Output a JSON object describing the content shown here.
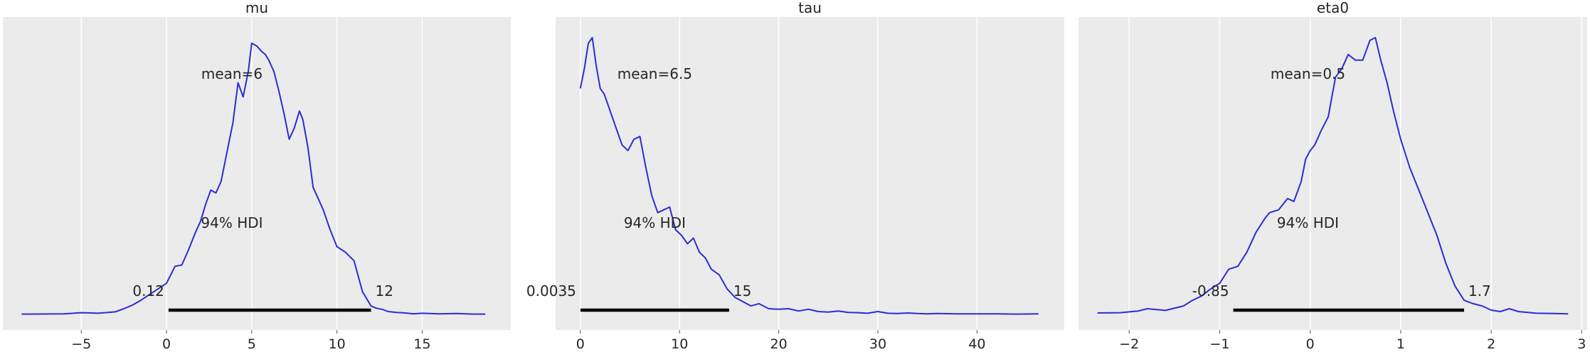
{
  "chart_data": [
    {
      "type": "area",
      "title": "mu",
      "xlim": [
        -9.6,
        20.2
      ],
      "xticks": [
        -5,
        0,
        5,
        10,
        15
      ],
      "xtick_labels": [
        "−5",
        "0",
        "5",
        "10",
        "15"
      ],
      "grid": true,
      "mean_label": "mean=6",
      "hdi_label": "94% HDI",
      "hdi": [
        0.12,
        12
      ],
      "hdi_labels": [
        "0.12",
        "12"
      ],
      "density": {
        "x": [
          -8.5,
          -6.0,
          -5.0,
          -4.0,
          -3.0,
          -2.5,
          -2.0,
          -1.5,
          -1.0,
          -0.5,
          0.0,
          0.5,
          0.9,
          1.3,
          1.7,
          2.0,
          2.3,
          2.6,
          2.9,
          3.2,
          3.5,
          3.9,
          4.2,
          4.5,
          4.8,
          5.0,
          5.3,
          5.6,
          5.8,
          6.0,
          6.3,
          6.6,
          6.9,
          7.2,
          7.5,
          7.8,
          8.0,
          8.3,
          8.6,
          8.9,
          9.2,
          9.6,
          10.0,
          10.5,
          11.0,
          11.5,
          12.0,
          12.3,
          12.7,
          13.0,
          13.5,
          14.0,
          14.5,
          15.0,
          16.0,
          17.0,
          18.0,
          18.7
        ],
        "y": [
          0.001,
          0.002,
          0.006,
          0.004,
          0.009,
          0.02,
          0.033,
          0.05,
          0.07,
          0.09,
          0.11,
          0.17,
          0.175,
          0.23,
          0.29,
          0.33,
          0.39,
          0.44,
          0.43,
          0.47,
          0.56,
          0.68,
          0.82,
          0.77,
          0.86,
          0.96,
          0.95,
          0.93,
          0.92,
          0.9,
          0.86,
          0.79,
          0.71,
          0.62,
          0.66,
          0.72,
          0.69,
          0.59,
          0.45,
          0.41,
          0.37,
          0.3,
          0.24,
          0.22,
          0.19,
          0.08,
          0.03,
          0.022,
          0.017,
          0.01,
          0.007,
          0.005,
          0.002,
          0.004,
          0.002,
          0.003,
          0.001,
          0.001
        ]
      }
    },
    {
      "type": "area",
      "title": "tau",
      "xlim": [
        -2.5,
        48.8
      ],
      "xticks": [
        0,
        10,
        20,
        30,
        40
      ],
      "xtick_labels": [
        "0",
        "10",
        "20",
        "30",
        "40"
      ],
      "grid": true,
      "mean_label": "mean=6.5",
      "hdi_label": "94% HDI",
      "hdi": [
        0.0035,
        15
      ],
      "hdi_labels": [
        "0.0035",
        "15"
      ],
      "density": {
        "x": [
          0.0,
          0.4,
          0.8,
          1.2,
          1.6,
          2.0,
          2.4,
          3.0,
          3.6,
          4.2,
          4.8,
          5.4,
          6.0,
          6.6,
          7.2,
          7.8,
          8.4,
          9.0,
          9.6,
          10.2,
          10.8,
          11.4,
          12.0,
          12.6,
          13.2,
          14.0,
          14.8,
          15.6,
          16.4,
          17.2,
          18.0,
          19.0,
          20.0,
          21.0,
          22.0,
          23.0,
          24.0,
          25.0,
          26.0,
          27.0,
          28.0,
          29.0,
          30.0,
          31.0,
          32.0,
          33.0,
          34.0,
          35.0,
          36.0,
          38.0,
          40.0,
          42.0,
          44.0,
          46.2
        ],
        "y": [
          0.8,
          0.87,
          0.96,
          0.98,
          0.88,
          0.8,
          0.78,
          0.72,
          0.66,
          0.6,
          0.58,
          0.62,
          0.63,
          0.52,
          0.42,
          0.36,
          0.37,
          0.38,
          0.3,
          0.28,
          0.25,
          0.27,
          0.22,
          0.2,
          0.16,
          0.14,
          0.09,
          0.06,
          0.045,
          0.03,
          0.038,
          0.02,
          0.018,
          0.02,
          0.012,
          0.018,
          0.01,
          0.008,
          0.012,
          0.007,
          0.006,
          0.004,
          0.01,
          0.004,
          0.003,
          0.005,
          0.003,
          0.002,
          0.003,
          0.002,
          0.002,
          0.002,
          0.001,
          0.002
        ]
      }
    },
    {
      "type": "area",
      "title": "eta0",
      "xlim": [
        -2.56,
        3.06
      ],
      "xticks": [
        -2,
        -1,
        0,
        1,
        2,
        3
      ],
      "xtick_labels": [
        "−2",
        "−1",
        "0",
        "1",
        "2",
        "3"
      ],
      "grid": true,
      "mean_label": "mean=0.5",
      "hdi_label": "94% HDI",
      "hdi": [
        -0.85,
        1.7
      ],
      "hdi_labels": [
        "-0.85",
        "1.7"
      ],
      "density": {
        "x": [
          -2.35,
          -2.1,
          -1.9,
          -1.8,
          -1.6,
          -1.4,
          -1.3,
          -1.2,
          -1.1,
          -1.0,
          -0.9,
          -0.8,
          -0.7,
          -0.6,
          -0.5,
          -0.45,
          -0.35,
          -0.25,
          -0.18,
          -0.1,
          -0.05,
          0.0,
          0.05,
          0.12,
          0.2,
          0.28,
          0.35,
          0.42,
          0.5,
          0.58,
          0.66,
          0.72,
          0.78,
          0.85,
          0.92,
          1.0,
          1.1,
          1.2,
          1.3,
          1.4,
          1.5,
          1.6,
          1.7,
          1.8,
          1.9,
          2.0,
          2.1,
          2.2,
          2.3,
          2.5,
          2.7,
          2.85
        ],
        "y": [
          0.005,
          0.006,
          0.012,
          0.02,
          0.014,
          0.03,
          0.05,
          0.065,
          0.09,
          0.11,
          0.16,
          0.17,
          0.22,
          0.29,
          0.34,
          0.36,
          0.37,
          0.41,
          0.4,
          0.47,
          0.55,
          0.58,
          0.6,
          0.65,
          0.7,
          0.84,
          0.87,
          0.92,
          0.9,
          0.9,
          0.97,
          0.98,
          0.9,
          0.82,
          0.72,
          0.62,
          0.52,
          0.44,
          0.36,
          0.28,
          0.18,
          0.1,
          0.05,
          0.038,
          0.03,
          0.015,
          0.01,
          0.02,
          0.01,
          0.004,
          0.003,
          0.002
        ]
      }
    }
  ],
  "colors": {
    "panel_bg": "#ebebeb",
    "grid": "#ffffff",
    "line": "#2c2cd6",
    "hdi_bar": "#000000",
    "text": "#262626"
  }
}
